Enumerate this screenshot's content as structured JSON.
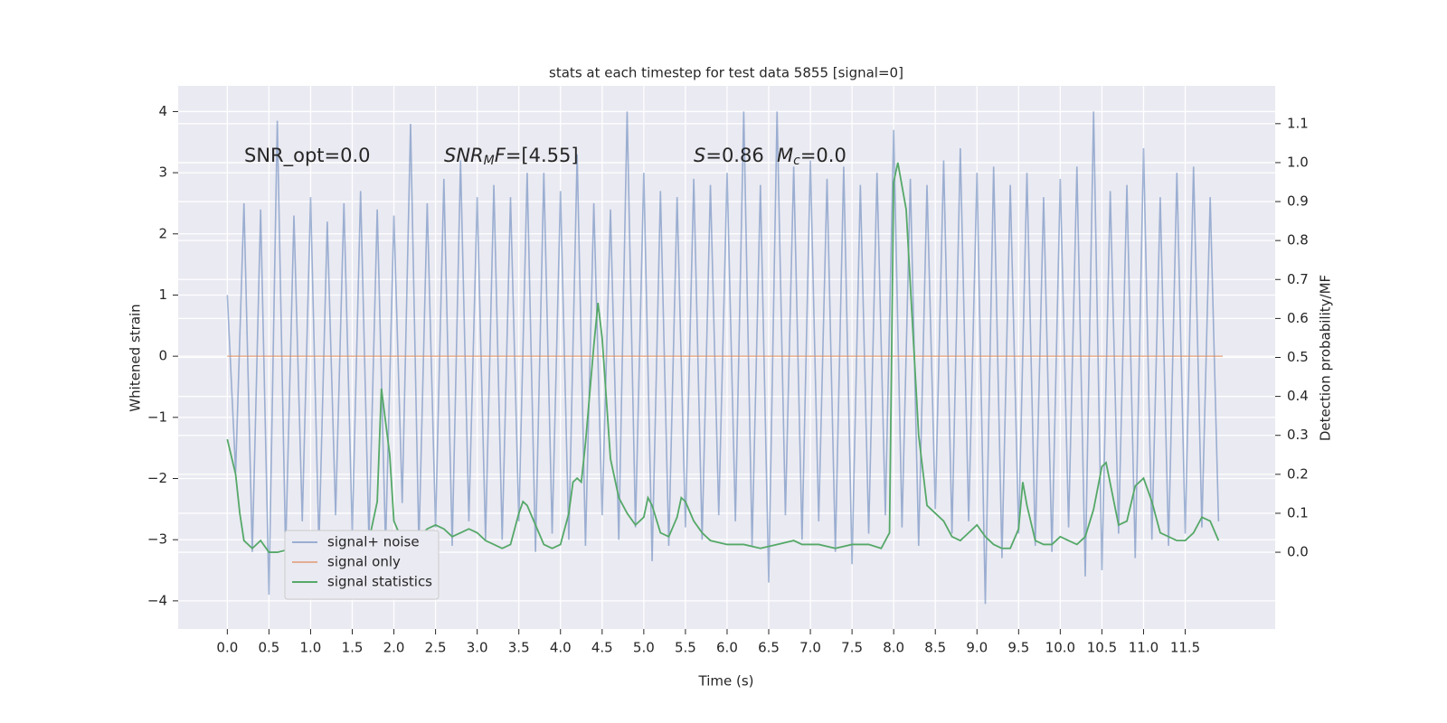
{
  "chart_data": {
    "type": "line",
    "title": "stats at each timestep for test data 5855 [signal=0]",
    "xlabel": "Time (s)",
    "ylabel": "Whitened strain",
    "y2label": "Detection probability/MF",
    "annotations": [
      [
        {
          "text": "SNR_opt=0.0"
        }
      ],
      [
        {
          "text": "SNR",
          "italic": true
        },
        {
          "text": "M",
          "italic": true,
          "sub": true
        },
        {
          "text": "F",
          "italic": true
        },
        {
          "text": "=[4.55]"
        }
      ],
      [
        {
          "text": "S",
          "italic": true
        },
        {
          "text": "=0.86"
        }
      ],
      [
        {
          "text": "M",
          "italic": true
        },
        {
          "text": "c",
          "italic": true,
          "sub": true
        },
        {
          "text": "=0.0"
        }
      ]
    ],
    "xlim": [
      -0.59,
      12.58
    ],
    "ylim": [
      -4.46,
      4.42
    ],
    "y2lim": [
      -0.197,
      1.197
    ],
    "xticks": [
      {
        "value": 0,
        "label": "0.0"
      },
      0.5,
      {
        "value": 1,
        "label": "1.0"
      },
      1.5,
      {
        "value": 2,
        "label": "2.0"
      },
      2.5,
      {
        "value": 3,
        "label": "3.0"
      },
      3.5,
      {
        "value": 4,
        "label": "4.0"
      },
      4.5,
      {
        "value": 5,
        "label": "5.0"
      },
      5.5,
      {
        "value": 6,
        "label": "6.0"
      },
      6.5,
      {
        "value": 7,
        "label": "7.0"
      },
      7.5,
      {
        "value": 8,
        "label": "8.0"
      },
      8.5,
      {
        "value": 9,
        "label": "9.0"
      },
      9.5,
      {
        "value": 10,
        "label": "10.0"
      },
      10.5,
      {
        "value": 11,
        "label": "11.0"
      },
      11.5
    ],
    "yticks": [
      {
        "value": -4,
        "label": "−4"
      },
      {
        "value": -3,
        "label": "−3"
      },
      {
        "value": -2,
        "label": "−2"
      },
      {
        "value": -1,
        "label": "−1"
      },
      0,
      1,
      2,
      3,
      4
    ],
    "y2ticks": [
      {
        "value": 0,
        "label": "0.0"
      },
      0.1,
      0.2,
      0.3,
      0.4,
      0.5,
      0.6,
      0.7,
      0.8,
      0.9,
      {
        "value": 1,
        "label": "1.0"
      },
      1.1
    ],
    "grid": true,
    "legend": "lower left",
    "series": [
      {
        "name": "signal+ noise",
        "color": "#4c72b0",
        "opacity": 0.5,
        "x": [
          0.0,
          0.1,
          0.2,
          0.3,
          0.4,
          0.5,
          0.6,
          0.7,
          0.8,
          0.9,
          1.0,
          1.1,
          1.2,
          1.3,
          1.4,
          1.5,
          1.6,
          1.7,
          1.8,
          1.9,
          2.0,
          2.1,
          2.2,
          2.3,
          2.4,
          2.5,
          2.6,
          2.7,
          2.8,
          2.9,
          3.0,
          3.1,
          3.2,
          3.3,
          3.4,
          3.5,
          3.6,
          3.7,
          3.8,
          3.9,
          4.0,
          4.1,
          4.2,
          4.3,
          4.4,
          4.5,
          4.6,
          4.7,
          4.8,
          4.9,
          5.0,
          5.1,
          5.2,
          5.3,
          5.4,
          5.5,
          5.6,
          5.7,
          5.8,
          5.9,
          6.0,
          6.1,
          6.2,
          6.3,
          6.4,
          6.5,
          6.6,
          6.7,
          6.8,
          6.9,
          7.0,
          7.1,
          7.2,
          7.3,
          7.4,
          7.5,
          7.6,
          7.7,
          7.8,
          7.9,
          8.0,
          8.1,
          8.2,
          8.3,
          8.4,
          8.5,
          8.6,
          8.7,
          8.8,
          8.9,
          9.0,
          9.1,
          9.2,
          9.3,
          9.4,
          9.5,
          9.6,
          9.7,
          9.8,
          9.9,
          10.0,
          10.1,
          10.2,
          10.3,
          10.4,
          10.5,
          10.6,
          10.7,
          10.8,
          10.9,
          11.0,
          11.1,
          11.2,
          11.3,
          11.4,
          11.5,
          11.6,
          11.7,
          11.8,
          11.9
        ],
        "values": [
          1.0,
          -1.9,
          2.5,
          -3.2,
          2.4,
          -3.9,
          3.85,
          -3.2,
          2.3,
          -2.7,
          2.6,
          -3.1,
          2.2,
          -2.6,
          2.5,
          -2.9,
          2.7,
          -3.0,
          2.4,
          -3.1,
          2.3,
          -2.4,
          3.8,
          -3.1,
          2.5,
          -2.8,
          2.9,
          -3.1,
          3.2,
          -2.7,
          2.6,
          -3.0,
          2.8,
          -3.0,
          2.6,
          -2.7,
          3.0,
          -3.2,
          3.0,
          -2.9,
          2.7,
          -3.0,
          3.3,
          -3.1,
          2.5,
          -2.6,
          2.4,
          -3.0,
          4.0,
          -2.8,
          3.0,
          -3.35,
          2.7,
          -3.1,
          2.6,
          -2.8,
          2.9,
          -3.0,
          2.8,
          -2.6,
          3.0,
          -2.7,
          4.0,
          -3.1,
          2.8,
          -3.7,
          4.0,
          -2.6,
          3.1,
          -3.0,
          3.2,
          -2.7,
          2.9,
          -3.2,
          3.1,
          -3.4,
          2.8,
          -2.9,
          3.0,
          -2.6,
          3.7,
          -2.8,
          2.9,
          -3.1,
          2.8,
          -2.5,
          3.2,
          -2.9,
          3.4,
          -2.7,
          3.0,
          -4.05,
          3.1,
          -3.3,
          2.8,
          -2.9,
          3.0,
          -3.1,
          2.6,
          -3.2,
          2.9,
          -2.8,
          3.1,
          -3.6,
          4.0,
          -3.5,
          2.7,
          -2.9,
          2.8,
          -3.3,
          3.4,
          -3.0,
          2.6,
          -3.1,
          3.0,
          -2.9,
          3.1,
          -2.8,
          2.6,
          -2.7
        ]
      },
      {
        "name": "signal only",
        "color": "#dd8452",
        "opacity": 0.6,
        "x": [
          0.0,
          11.95
        ],
        "values": [
          0,
          0
        ]
      },
      {
        "name": "signal statistics",
        "color": "#55a868",
        "opacity": 1,
        "axis": "y2",
        "x": [
          0.0,
          0.1,
          0.15,
          0.2,
          0.3,
          0.4,
          0.5,
          0.6,
          0.7,
          0.8,
          0.9,
          1.0,
          1.1,
          1.2,
          1.3,
          1.4,
          1.5,
          1.6,
          1.7,
          1.8,
          1.85,
          1.95,
          2.0,
          2.1,
          2.2,
          2.3,
          2.4,
          2.5,
          2.6,
          2.7,
          2.8,
          2.9,
          3.0,
          3.1,
          3.2,
          3.3,
          3.4,
          3.5,
          3.55,
          3.6,
          3.7,
          3.8,
          3.9,
          4.0,
          4.1,
          4.15,
          4.2,
          4.25,
          4.3,
          4.4,
          4.45,
          4.5,
          4.6,
          4.7,
          4.8,
          4.9,
          5.0,
          5.05,
          5.1,
          5.2,
          5.3,
          5.4,
          5.45,
          5.5,
          5.6,
          5.7,
          5.8,
          6.0,
          6.2,
          6.4,
          6.6,
          6.8,
          6.9,
          7.1,
          7.3,
          7.5,
          7.7,
          7.85,
          7.95,
          8.0,
          8.05,
          8.15,
          8.3,
          8.4,
          8.5,
          8.6,
          8.7,
          8.8,
          8.9,
          9.0,
          9.1,
          9.2,
          9.3,
          9.4,
          9.5,
          9.55,
          9.6,
          9.7,
          9.8,
          9.9,
          10.0,
          10.1,
          10.2,
          10.3,
          10.4,
          10.5,
          10.55,
          10.7,
          10.8,
          10.9,
          11.0,
          11.1,
          11.2,
          11.3,
          11.4,
          11.5,
          11.6,
          11.7,
          11.8,
          11.9
        ],
        "values": [
          0.29,
          0.2,
          0.1,
          0.03,
          0.01,
          0.03,
          0.0,
          0.0,
          0.005,
          0.005,
          0.01,
          0.005,
          0.005,
          0.02,
          0.015,
          0.01,
          0.01,
          0.01,
          0.03,
          0.13,
          0.42,
          0.25,
          0.08,
          0.03,
          0.03,
          0.04,
          0.06,
          0.07,
          0.06,
          0.04,
          0.05,
          0.06,
          0.05,
          0.03,
          0.02,
          0.01,
          0.02,
          0.1,
          0.13,
          0.12,
          0.07,
          0.02,
          0.01,
          0.02,
          0.1,
          0.18,
          0.19,
          0.18,
          0.28,
          0.53,
          0.64,
          0.55,
          0.24,
          0.14,
          0.1,
          0.07,
          0.09,
          0.14,
          0.12,
          0.05,
          0.04,
          0.09,
          0.14,
          0.13,
          0.08,
          0.05,
          0.03,
          0.02,
          0.02,
          0.01,
          0.02,
          0.03,
          0.02,
          0.02,
          0.01,
          0.02,
          0.02,
          0.01,
          0.05,
          0.95,
          1.0,
          0.88,
          0.3,
          0.12,
          0.1,
          0.08,
          0.04,
          0.03,
          0.05,
          0.07,
          0.04,
          0.02,
          0.01,
          0.01,
          0.06,
          0.18,
          0.12,
          0.03,
          0.02,
          0.02,
          0.04,
          0.03,
          0.02,
          0.04,
          0.11,
          0.22,
          0.23,
          0.07,
          0.08,
          0.17,
          0.19,
          0.13,
          0.05,
          0.04,
          0.03,
          0.03,
          0.05,
          0.09,
          0.08,
          0.03
        ]
      }
    ]
  }
}
